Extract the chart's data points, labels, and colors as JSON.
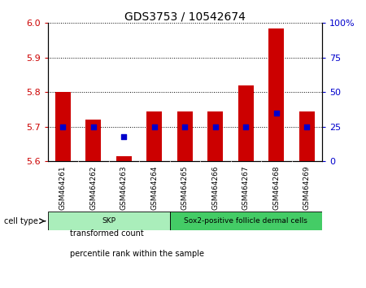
{
  "title": "GDS3753 / 10542674",
  "samples": [
    "GSM464261",
    "GSM464262",
    "GSM464263",
    "GSM464264",
    "GSM464265",
    "GSM464266",
    "GSM464267",
    "GSM464268",
    "GSM464269"
  ],
  "transformed_counts": [
    5.8,
    5.72,
    5.615,
    5.745,
    5.745,
    5.745,
    5.82,
    5.985,
    5.745
  ],
  "percentile_ranks": [
    25,
    25,
    18,
    25,
    25,
    25,
    25,
    35,
    25
  ],
  "ylim_left": [
    5.6,
    6.0
  ],
  "ylim_right": [
    0,
    100
  ],
  "yticks_left": [
    5.6,
    5.7,
    5.8,
    5.9,
    6.0
  ],
  "yticks_right": [
    0,
    25,
    50,
    75,
    100
  ],
  "ytick_labels_right": [
    "0",
    "25",
    "50",
    "75",
    "100%"
  ],
  "cell_types": [
    {
      "label": "SKP",
      "samples": [
        0,
        3
      ],
      "color": "#aaeebb"
    },
    {
      "label": "Sox2-positive follicle dermal cells",
      "samples": [
        4,
        8
      ],
      "color": "#44cc66"
    }
  ],
  "bar_color": "#cc0000",
  "dot_color": "#0000cc",
  "bar_width": 0.5,
  "dot_size": 18,
  "background_color": "#ffffff",
  "left_axis_color": "#cc0000",
  "right_axis_color": "#0000cc",
  "plot_bg_color": "#ffffff",
  "xtick_area_color": "#d0d0d0",
  "legend_items": [
    {
      "label": "transformed count",
      "color": "#cc0000"
    },
    {
      "label": "percentile rank within the sample",
      "color": "#0000cc"
    }
  ]
}
